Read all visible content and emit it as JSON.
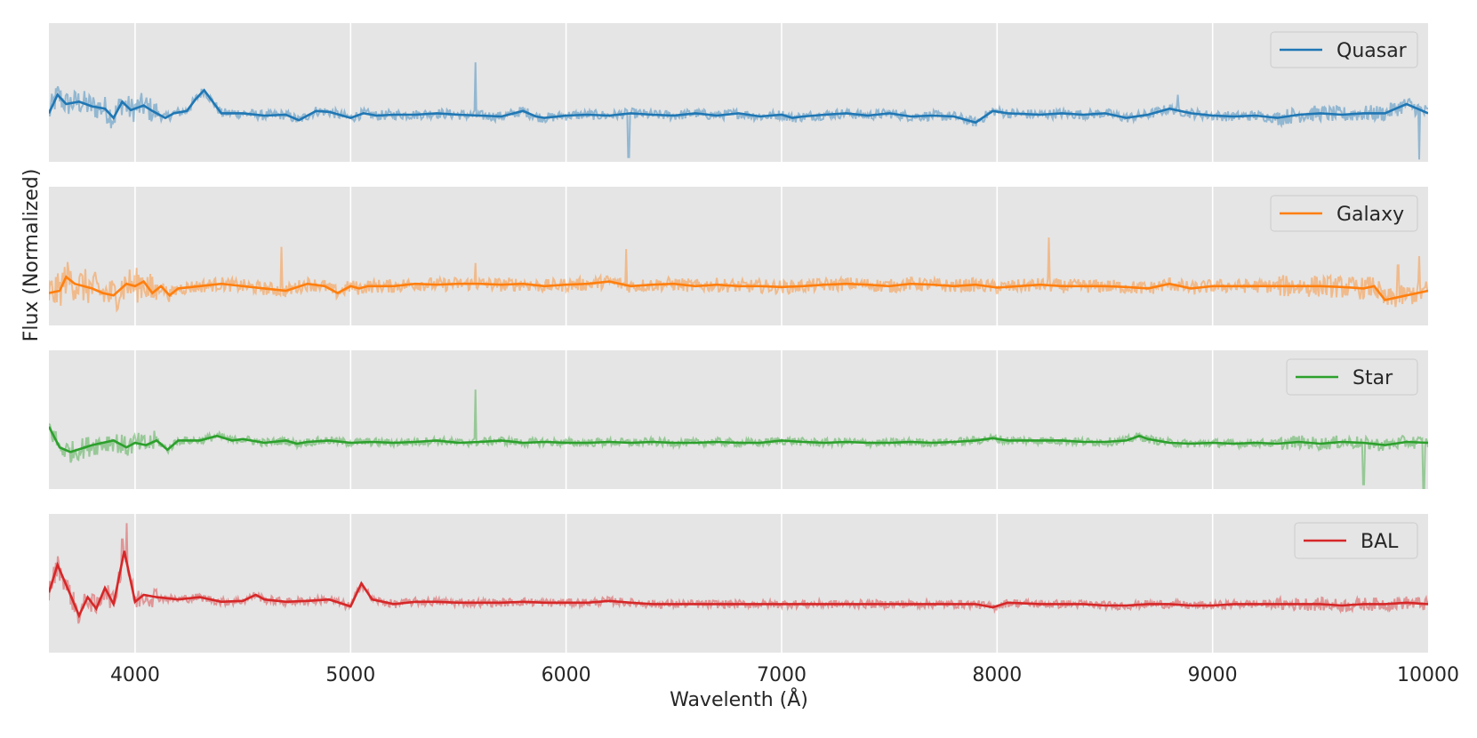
{
  "chart_data": {
    "type": "line",
    "xlabel": "Wavelenth (Å)",
    "ylabel": "Flux (Normalized)",
    "xlim": [
      3600,
      10000
    ],
    "x_ticks": [
      4000,
      5000,
      6000,
      7000,
      8000,
      9000,
      10000
    ],
    "grid": true,
    "legend_position": "top-right",
    "panels": [
      {
        "name": "Quasar",
        "color": "#1f77b4",
        "noise_amplitude": 0.22,
        "x": [
          3600,
          3640,
          3680,
          3740,
          3800,
          3860,
          3900,
          3940,
          3980,
          4040,
          4080,
          4140,
          4180,
          4240,
          4280,
          4320,
          4400,
          4500,
          4600,
          4700,
          4760,
          4840,
          4900,
          5000,
          5060,
          5120,
          5200,
          5300,
          5400,
          5500,
          5600,
          5700,
          5800,
          5860,
          5900,
          6000,
          6100,
          6200,
          6300,
          6400,
          6500,
          6600,
          6700,
          6800,
          6900,
          7000,
          7050,
          7100,
          7200,
          7300,
          7400,
          7500,
          7600,
          7700,
          7800,
          7900,
          7980,
          8050,
          8200,
          8300,
          8400,
          8500,
          8600,
          8700,
          8800,
          8900,
          9000,
          9100,
          9200,
          9300,
          9400,
          9500,
          9600,
          9700,
          9800,
          9850,
          9900,
          9950,
          10000
        ],
        "y": [
          0.55,
          0.95,
          0.75,
          0.8,
          0.7,
          0.65,
          0.45,
          0.8,
          0.62,
          0.72,
          0.6,
          0.45,
          0.55,
          0.6,
          0.85,
          1.05,
          0.55,
          0.55,
          0.5,
          0.52,
          0.4,
          0.6,
          0.58,
          0.45,
          0.55,
          0.5,
          0.52,
          0.52,
          0.55,
          0.52,
          0.5,
          0.48,
          0.6,
          0.48,
          0.45,
          0.5,
          0.52,
          0.5,
          0.55,
          0.52,
          0.5,
          0.55,
          0.5,
          0.55,
          0.48,
          0.52,
          0.45,
          0.48,
          0.52,
          0.55,
          0.5,
          0.55,
          0.48,
          0.5,
          0.48,
          0.35,
          0.6,
          0.55,
          0.52,
          0.55,
          0.52,
          0.55,
          0.45,
          0.52,
          0.65,
          0.55,
          0.5,
          0.48,
          0.5,
          0.45,
          0.52,
          0.55,
          0.52,
          0.55,
          0.55,
          0.65,
          0.75,
          0.65,
          0.55
        ],
        "spikes": [
          [
            5580,
            1.65
          ],
          [
            6290,
            -0.4
          ],
          [
            8840,
            0.95
          ],
          [
            9960,
            -0.45
          ]
        ]
      },
      {
        "name": "Galaxy",
        "color": "#ff7f0e",
        "noise_amplitude": 0.3,
        "x": [
          3600,
          3650,
          3680,
          3720,
          3760,
          3800,
          3850,
          3900,
          3960,
          4000,
          4040,
          4080,
          4120,
          4160,
          4200,
          4300,
          4400,
          4500,
          4600,
          4700,
          4800,
          4880,
          4940,
          5000,
          5040,
          5080,
          5200,
          5300,
          5400,
          5500,
          5600,
          5700,
          5800,
          5900,
          6000,
          6100,
          6200,
          6300,
          6400,
          6500,
          6600,
          6700,
          6800,
          6900,
          7000,
          7100,
          7200,
          7300,
          7400,
          7500,
          7600,
          7700,
          7800,
          7900,
          8000,
          8100,
          8200,
          8300,
          8400,
          8500,
          8600,
          8700,
          8800,
          8900,
          9000,
          9100,
          9200,
          9300,
          9400,
          9500,
          9600,
          9700,
          9750,
          9800,
          9900,
          10000
        ],
        "y": [
          0.2,
          0.25,
          0.55,
          0.4,
          0.35,
          0.3,
          0.2,
          0.15,
          0.4,
          0.35,
          0.45,
          0.2,
          0.35,
          0.15,
          0.3,
          0.35,
          0.4,
          0.35,
          0.3,
          0.25,
          0.4,
          0.35,
          0.2,
          0.35,
          0.3,
          0.35,
          0.35,
          0.4,
          0.38,
          0.4,
          0.4,
          0.38,
          0.4,
          0.35,
          0.38,
          0.4,
          0.45,
          0.35,
          0.38,
          0.4,
          0.35,
          0.38,
          0.35,
          0.35,
          0.33,
          0.35,
          0.38,
          0.4,
          0.38,
          0.35,
          0.4,
          0.38,
          0.35,
          0.38,
          0.32,
          0.35,
          0.38,
          0.35,
          0.35,
          0.35,
          0.33,
          0.3,
          0.4,
          0.3,
          0.35,
          0.35,
          0.35,
          0.35,
          0.35,
          0.35,
          0.33,
          0.3,
          0.35,
          0.05,
          0.15,
          0.25
        ],
        "spikes": [
          [
            4680,
            1.2
          ],
          [
            5580,
            0.85
          ],
          [
            6280,
            1.15
          ],
          [
            8240,
            1.4
          ],
          [
            9860,
            0.8
          ],
          [
            9960,
            1.0
          ]
        ]
      },
      {
        "name": "Star",
        "color": "#2ca02c",
        "noise_amplitude": 0.18,
        "x": [
          3600,
          3650,
          3700,
          3800,
          3900,
          3960,
          4000,
          4050,
          4100,
          4150,
          4200,
          4300,
          4380,
          4450,
          4500,
          4600,
          4700,
          4750,
          4800,
          4900,
          5000,
          5100,
          5200,
          5300,
          5400,
          5500,
          5600,
          5700,
          5800,
          5900,
          6000,
          6100,
          6200,
          6300,
          6400,
          6500,
          6600,
          6700,
          6800,
          6900,
          7000,
          7100,
          7200,
          7300,
          7400,
          7500,
          7600,
          7700,
          7800,
          7900,
          7980,
          8050,
          8200,
          8300,
          8400,
          8500,
          8600,
          8660,
          8700,
          8800,
          8900,
          9000,
          9100,
          9200,
          9300,
          9400,
          9500,
          9600,
          9700,
          9800,
          9900,
          10000
        ],
        "y": [
          0.85,
          0.4,
          0.3,
          0.45,
          0.55,
          0.4,
          0.5,
          0.45,
          0.55,
          0.35,
          0.55,
          0.55,
          0.65,
          0.55,
          0.58,
          0.5,
          0.55,
          0.48,
          0.52,
          0.55,
          0.5,
          0.52,
          0.5,
          0.52,
          0.55,
          0.5,
          0.52,
          0.55,
          0.5,
          0.52,
          0.5,
          0.5,
          0.52,
          0.5,
          0.52,
          0.5,
          0.5,
          0.52,
          0.5,
          0.5,
          0.55,
          0.52,
          0.5,
          0.52,
          0.5,
          0.5,
          0.52,
          0.5,
          0.52,
          0.55,
          0.6,
          0.55,
          0.55,
          0.55,
          0.52,
          0.52,
          0.55,
          0.65,
          0.58,
          0.5,
          0.48,
          0.5,
          0.48,
          0.5,
          0.48,
          0.52,
          0.48,
          0.52,
          0.5,
          0.45,
          0.52,
          0.5
        ],
        "spikes": [
          [
            5580,
            1.65
          ],
          [
            9700,
            -0.4
          ],
          [
            9980,
            -0.55
          ]
        ]
      },
      {
        "name": "BAL",
        "color": "#d62728",
        "noise_amplitude": 0.18,
        "x": [
          3600,
          3640,
          3700,
          3740,
          3780,
          3820,
          3860,
          3900,
          3950,
          4000,
          4040,
          4100,
          4200,
          4300,
          4400,
          4500,
          4560,
          4600,
          4700,
          4800,
          4900,
          5000,
          5050,
          5100,
          5200,
          5300,
          5400,
          5500,
          5600,
          5700,
          5800,
          5900,
          6000,
          6100,
          6200,
          6300,
          6400,
          6500,
          6600,
          6700,
          6800,
          6900,
          7000,
          7100,
          7200,
          7300,
          7400,
          7500,
          7600,
          7700,
          7800,
          7900,
          7980,
          8050,
          8200,
          8300,
          8400,
          8500,
          8600,
          8700,
          8800,
          8900,
          9000,
          9100,
          9200,
          9300,
          9400,
          9500,
          9600,
          9700,
          9800,
          9900,
          10000
        ],
        "y": [
          0.8,
          1.4,
          0.75,
          0.3,
          0.7,
          0.45,
          0.9,
          0.55,
          1.7,
          0.6,
          0.75,
          0.7,
          0.65,
          0.7,
          0.6,
          0.62,
          0.75,
          0.65,
          0.6,
          0.62,
          0.65,
          0.5,
          1.0,
          0.65,
          0.55,
          0.6,
          0.6,
          0.58,
          0.58,
          0.58,
          0.6,
          0.58,
          0.58,
          0.58,
          0.62,
          0.58,
          0.55,
          0.55,
          0.55,
          0.55,
          0.55,
          0.55,
          0.55,
          0.55,
          0.55,
          0.55,
          0.55,
          0.55,
          0.55,
          0.55,
          0.55,
          0.55,
          0.48,
          0.58,
          0.55,
          0.55,
          0.55,
          0.52,
          0.52,
          0.55,
          0.55,
          0.52,
          0.52,
          0.55,
          0.55,
          0.55,
          0.55,
          0.55,
          0.52,
          0.55,
          0.55,
          0.58,
          0.55
        ],
        "spikes": [
          [
            3960,
            2.3
          ],
          [
            3940,
            1.95
          ]
        ]
      }
    ]
  }
}
